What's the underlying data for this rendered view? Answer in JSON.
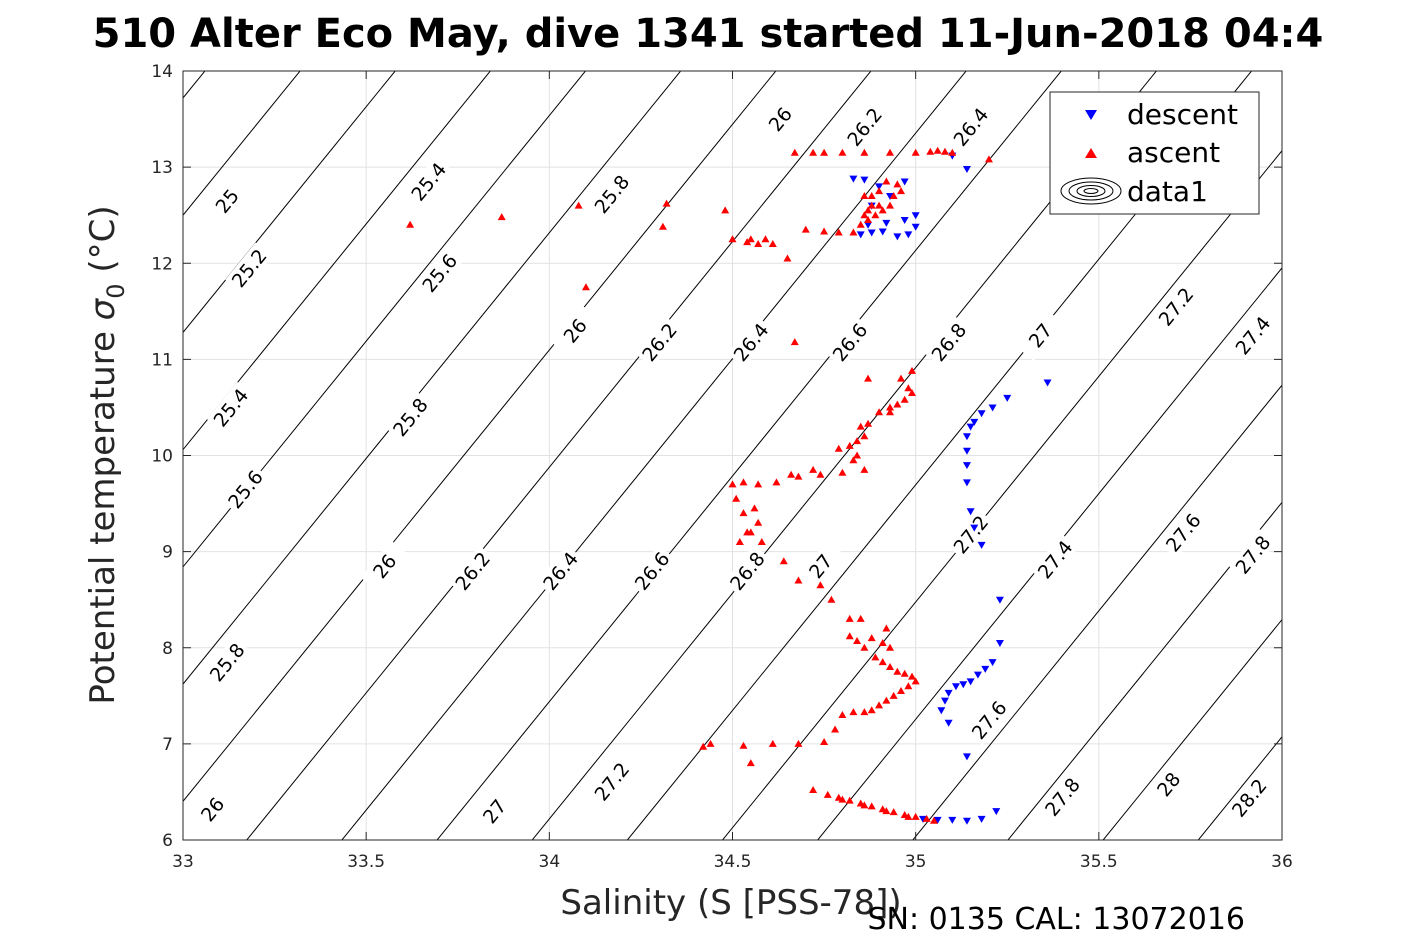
{
  "chart_data": {
    "type": "scatter",
    "title": "510 Alter Eco May, dive 1341 started 11-Jun-2018 04:4",
    "xlabel": "Salinity (S [PSS-78])",
    "ylabel_main": "Potential temperature ",
    "ylabel_sigma": "σ",
    "ylabel_sub": "0",
    "ylabel_unit": " (°C)",
    "footer": "SN: 0135  CAL: 13072016",
    "xlim": [
      33,
      36
    ],
    "ylim": [
      6,
      14
    ],
    "x_ticks": [
      33,
      33.5,
      34,
      34.5,
      35,
      35.5,
      36
    ],
    "x_tick_labels": [
      "33",
      "33.5",
      "34",
      "34.5",
      "35",
      "35.5",
      "36"
    ],
    "y_ticks": [
      6,
      7,
      8,
      9,
      10,
      11,
      12,
      13,
      14
    ],
    "y_tick_labels": [
      "6",
      "7",
      "8",
      "9",
      "10",
      "11",
      "12",
      "13",
      "14"
    ],
    "grid": true,
    "legend_position": "top-right",
    "legend": [
      "descent",
      "ascent",
      "data1"
    ],
    "density_contours": {
      "levels": [
        24.8,
        25.0,
        25.2,
        25.4,
        25.6,
        25.8,
        26.0,
        26.2,
        26.4,
        26.6,
        26.8,
        27.0,
        27.2,
        27.4,
        27.6,
        27.8,
        28.0,
        28.2,
        28.4
      ],
      "labels": [
        {
          "text": "25",
          "s": 33.12,
          "t": 12.65
        },
        {
          "text": "25.2",
          "s": 33.18,
          "t": 11.95
        },
        {
          "text": "25.4",
          "s": 33.13,
          "t": 10.5
        },
        {
          "text": "25.6",
          "s": 33.17,
          "t": 9.65
        },
        {
          "text": "25.8",
          "s": 33.12,
          "t": 7.85
        },
        {
          "text": "26",
          "s": 33.08,
          "t": 6.32
        },
        {
          "text": "25.4",
          "s": 33.67,
          "t": 12.85
        },
        {
          "text": "25.6",
          "s": 33.7,
          "t": 11.9
        },
        {
          "text": "25.8",
          "s": 33.62,
          "t": 10.4
        },
        {
          "text": "26",
          "s": 33.55,
          "t": 8.85
        },
        {
          "text": "26.2",
          "s": 33.79,
          "t": 8.8
        },
        {
          "text": "25.8",
          "s": 34.17,
          "t": 12.72
        },
        {
          "text": "26",
          "s": 34.07,
          "t": 11.3
        },
        {
          "text": "26.4",
          "s": 34.03,
          "t": 8.8
        },
        {
          "text": "27",
          "s": 33.85,
          "t": 6.3
        },
        {
          "text": "26",
          "s": 34.63,
          "t": 13.5
        },
        {
          "text": "26.2",
          "s": 34.3,
          "t": 11.18
        },
        {
          "text": "26.6",
          "s": 34.28,
          "t": 8.8
        },
        {
          "text": "26.2",
          "s": 34.86,
          "t": 13.42
        },
        {
          "text": "26.4",
          "s": 34.55,
          "t": 11.18
        },
        {
          "text": "26.8",
          "s": 34.54,
          "t": 8.8
        },
        {
          "text": "27.2",
          "s": 34.17,
          "t": 6.61
        },
        {
          "text": "26.4",
          "s": 35.15,
          "t": 13.42
        },
        {
          "text": "26.6",
          "s": 34.82,
          "t": 11.18
        },
        {
          "text": "27",
          "s": 34.74,
          "t": 8.85
        },
        {
          "text": "26.8",
          "s": 35.09,
          "t": 11.18
        },
        {
          "text": "27.2",
          "s": 35.15,
          "t": 9.18
        },
        {
          "text": "27.6",
          "s": 35.2,
          "t": 7.25
        },
        {
          "text": "27",
          "s": 35.34,
          "t": 11.25
        },
        {
          "text": "27.4",
          "s": 35.38,
          "t": 8.92
        },
        {
          "text": "27.8",
          "s": 35.4,
          "t": 6.45
        },
        {
          "text": "27.2",
          "s": 35.71,
          "t": 11.55
        },
        {
          "text": "27.6",
          "s": 35.73,
          "t": 9.2
        },
        {
          "text": "28",
          "s": 35.69,
          "t": 6.58
        },
        {
          "text": "27.4",
          "s": 35.92,
          "t": 11.25
        },
        {
          "text": "27.8",
          "s": 35.92,
          "t": 8.97
        },
        {
          "text": "28.2",
          "s": 35.91,
          "t": 6.44
        }
      ]
    },
    "series": [
      {
        "name": "descent",
        "marker": "triangle-down",
        "color": "#0000ff",
        "points": [
          [
            35.02,
            6.22
          ],
          [
            35.06,
            6.21
          ],
          [
            35.1,
            6.21
          ],
          [
            35.14,
            6.2
          ],
          [
            35.18,
            6.22
          ],
          [
            35.22,
            6.3
          ],
          [
            35.14,
            6.87
          ],
          [
            35.09,
            7.22
          ],
          [
            35.07,
            7.35
          ],
          [
            35.08,
            7.45
          ],
          [
            35.09,
            7.53
          ],
          [
            35.11,
            7.6
          ],
          [
            35.13,
            7.62
          ],
          [
            35.15,
            7.65
          ],
          [
            35.17,
            7.72
          ],
          [
            35.19,
            7.78
          ],
          [
            35.21,
            7.85
          ],
          [
            35.23,
            8.05
          ],
          [
            35.23,
            8.5
          ],
          [
            35.18,
            9.07
          ],
          [
            35.16,
            9.25
          ],
          [
            35.15,
            9.42
          ],
          [
            35.14,
            9.72
          ],
          [
            35.14,
            9.9
          ],
          [
            35.14,
            10.05
          ],
          [
            35.14,
            10.2
          ],
          [
            35.15,
            10.3
          ],
          [
            35.16,
            10.35
          ],
          [
            35.18,
            10.44
          ],
          [
            35.21,
            10.5
          ],
          [
            35.25,
            10.6
          ],
          [
            35.36,
            10.76
          ],
          [
            34.85,
            12.3
          ],
          [
            34.88,
            12.32
          ],
          [
            34.91,
            12.33
          ],
          [
            34.95,
            12.28
          ],
          [
            34.98,
            12.3
          ],
          [
            35.0,
            12.38
          ],
          [
            34.87,
            12.4
          ],
          [
            34.92,
            12.42
          ],
          [
            34.97,
            12.45
          ],
          [
            35.0,
            12.5
          ],
          [
            34.88,
            12.6
          ],
          [
            34.93,
            12.7
          ],
          [
            34.9,
            12.8
          ],
          [
            34.86,
            12.87
          ],
          [
            34.83,
            12.88
          ],
          [
            34.97,
            12.85
          ],
          [
            35.1,
            13.12
          ],
          [
            35.14,
            12.98
          ]
        ]
      },
      {
        "name": "ascent",
        "marker": "triangle-up",
        "color": "#ff0000",
        "points": [
          [
            35.05,
            6.2
          ],
          [
            35.03,
            6.22
          ],
          [
            35.0,
            6.24
          ],
          [
            34.97,
            6.26
          ],
          [
            34.94,
            6.29
          ],
          [
            34.91,
            6.32
          ],
          [
            34.88,
            6.35
          ],
          [
            34.85,
            6.38
          ],
          [
            34.82,
            6.41
          ],
          [
            34.79,
            6.44
          ],
          [
            34.76,
            6.47
          ],
          [
            34.72,
            6.52
          ],
          [
            34.98,
            6.24
          ],
          [
            34.92,
            6.3
          ],
          [
            34.86,
            6.36
          ],
          [
            34.8,
            6.42
          ],
          [
            34.42,
            6.97
          ],
          [
            34.44,
            7.0
          ],
          [
            34.53,
            6.98
          ],
          [
            34.55,
            6.8
          ],
          [
            34.61,
            7.0
          ],
          [
            34.68,
            7.0
          ],
          [
            34.75,
            7.02
          ],
          [
            34.78,
            7.15
          ],
          [
            34.8,
            7.3
          ],
          [
            34.83,
            7.33
          ],
          [
            34.86,
            7.33
          ],
          [
            34.88,
            7.35
          ],
          [
            34.9,
            7.4
          ],
          [
            34.92,
            7.45
          ],
          [
            34.94,
            7.5
          ],
          [
            34.96,
            7.55
          ],
          [
            34.98,
            7.6
          ],
          [
            35.0,
            7.65
          ],
          [
            34.99,
            7.7
          ],
          [
            34.97,
            7.73
          ],
          [
            34.95,
            7.75
          ],
          [
            34.93,
            7.8
          ],
          [
            34.91,
            7.85
          ],
          [
            34.89,
            7.9
          ],
          [
            34.86,
            8.0
          ],
          [
            34.84,
            8.07
          ],
          [
            34.82,
            8.12
          ],
          [
            34.88,
            8.1
          ],
          [
            34.91,
            8.05
          ],
          [
            34.93,
            8.0
          ],
          [
            34.85,
            8.3
          ],
          [
            34.82,
            8.3
          ],
          [
            34.92,
            8.2
          ],
          [
            34.77,
            8.5
          ],
          [
            34.74,
            8.65
          ],
          [
            34.68,
            8.7
          ],
          [
            34.64,
            8.9
          ],
          [
            34.58,
            9.1
          ],
          [
            34.54,
            9.2
          ],
          [
            34.52,
            9.1
          ],
          [
            34.55,
            9.2
          ],
          [
            34.57,
            9.3
          ],
          [
            34.53,
            9.4
          ],
          [
            34.56,
            9.45
          ],
          [
            34.51,
            9.55
          ],
          [
            34.5,
            9.7
          ],
          [
            34.53,
            9.72
          ],
          [
            34.57,
            9.7
          ],
          [
            34.62,
            9.72
          ],
          [
            34.68,
            9.78
          ],
          [
            34.74,
            9.8
          ],
          [
            34.8,
            9.82
          ],
          [
            34.86,
            9.85
          ],
          [
            34.84,
            10.0
          ],
          [
            34.82,
            10.1
          ],
          [
            34.84,
            10.15
          ],
          [
            34.86,
            10.2
          ],
          [
            34.85,
            10.3
          ],
          [
            34.87,
            10.33
          ],
          [
            34.9,
            10.45
          ],
          [
            34.93,
            10.5
          ],
          [
            34.95,
            10.53
          ],
          [
            34.97,
            10.58
          ],
          [
            34.99,
            10.65
          ],
          [
            34.98,
            10.7
          ],
          [
            34.96,
            10.8
          ],
          [
            34.99,
            10.88
          ],
          [
            34.87,
            10.8
          ],
          [
            34.83,
            9.95
          ],
          [
            34.79,
            10.07
          ],
          [
            34.93,
            10.45
          ],
          [
            34.72,
            9.85
          ],
          [
            34.66,
            9.8
          ],
          [
            34.67,
            11.18
          ],
          [
            34.61,
            12.2
          ],
          [
            34.59,
            12.25
          ],
          [
            34.57,
            12.2
          ],
          [
            34.55,
            12.25
          ],
          [
            34.54,
            12.22
          ],
          [
            34.5,
            12.25
          ],
          [
            34.48,
            12.55
          ],
          [
            34.31,
            12.38
          ],
          [
            34.32,
            12.62
          ],
          [
            34.08,
            12.6
          ],
          [
            34.1,
            11.75
          ],
          [
            33.87,
            12.48
          ],
          [
            33.62,
            12.4
          ],
          [
            34.65,
            12.05
          ],
          [
            34.7,
            12.35
          ],
          [
            34.75,
            12.33
          ],
          [
            34.79,
            12.32
          ],
          [
            34.83,
            12.32
          ],
          [
            34.85,
            12.4
          ],
          [
            34.87,
            12.45
          ],
          [
            34.89,
            12.5
          ],
          [
            34.91,
            12.55
          ],
          [
            34.93,
            12.6
          ],
          [
            34.94,
            12.7
          ],
          [
            34.96,
            12.75
          ],
          [
            34.95,
            12.82
          ],
          [
            34.92,
            12.85
          ],
          [
            34.9,
            12.75
          ],
          [
            34.88,
            12.7
          ],
          [
            34.9,
            12.6
          ],
          [
            34.87,
            12.55
          ],
          [
            34.86,
            12.5
          ],
          [
            34.88,
            12.6
          ],
          [
            34.86,
            12.7
          ],
          [
            34.75,
            13.15
          ],
          [
            34.8,
            13.15
          ],
          [
            34.67,
            13.15
          ],
          [
            34.72,
            13.15
          ],
          [
            34.86,
            13.15
          ],
          [
            34.93,
            13.15
          ],
          [
            35.0,
            13.15
          ],
          [
            35.04,
            13.16
          ],
          [
            35.06,
            13.17
          ],
          [
            35.08,
            13.16
          ],
          [
            35.1,
            13.15
          ],
          [
            35.2,
            13.08
          ]
        ]
      }
    ]
  }
}
